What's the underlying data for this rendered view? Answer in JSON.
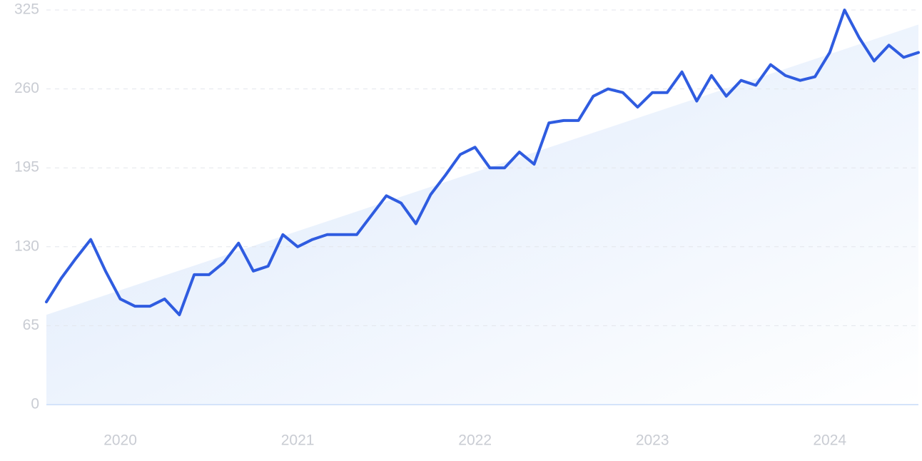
{
  "chart_data": {
    "type": "line",
    "categories": [
      null,
      null,
      null,
      null,
      null,
      "2020",
      null,
      null,
      null,
      null,
      null,
      null,
      null,
      null,
      null,
      null,
      null,
      "2021",
      null,
      null,
      null,
      null,
      null,
      null,
      null,
      null,
      null,
      null,
      null,
      "2022",
      null,
      null,
      null,
      null,
      null,
      null,
      null,
      null,
      null,
      null,
      null,
      "2023",
      null,
      null,
      null,
      null,
      null,
      null,
      null,
      null,
      null,
      null,
      null,
      "2024",
      null,
      null,
      null,
      null,
      null,
      null
    ],
    "values": [
      84.6,
      104,
      120.5,
      136,
      110,
      87,
      81,
      81,
      87,
      74,
      107,
      107,
      117,
      133,
      110,
      114,
      140,
      130,
      136,
      140,
      140,
      140,
      156,
      172,
      166,
      149,
      173,
      189,
      206,
      212,
      195,
      195,
      208,
      198,
      232,
      234,
      234,
      254,
      260,
      257,
      245,
      257,
      257,
      274,
      250,
      271,
      254,
      267,
      263,
      280,
      271,
      267,
      270,
      290,
      325,
      302,
      283,
      296,
      286,
      290
    ],
    "color": "#2f5ce0",
    "trend": [
      74,
      313
    ],
    "trend_color": "#dbe8fb",
    "ylim": [
      0,
      325
    ],
    "yticks": [
      0,
      65,
      130,
      195,
      260,
      325
    ],
    "grid": true
  }
}
